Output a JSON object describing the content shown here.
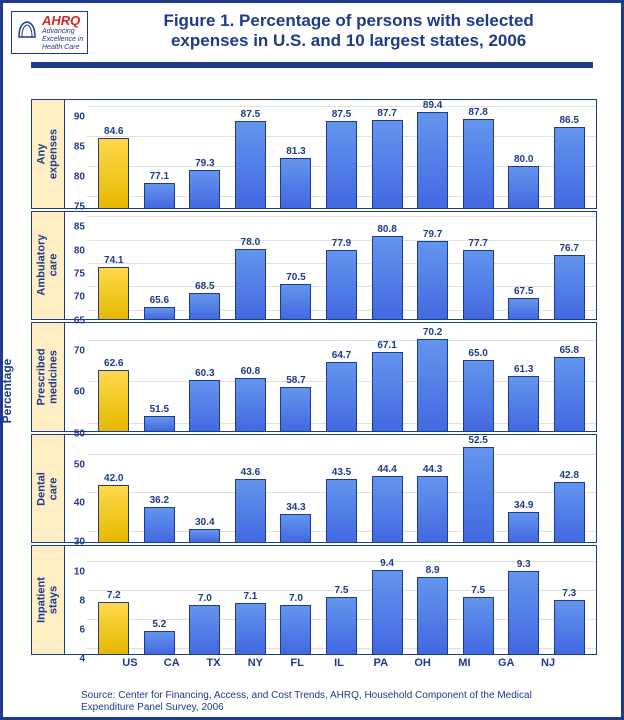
{
  "logo": {
    "brand": "AHRQ",
    "sub1": "Advancing",
    "sub2": "Excellence in",
    "sub3": "Health Care"
  },
  "title_line1": "Figure 1. Percentage of persons with selected",
  "title_line2": "expenses in U.S. and 10 largest states, 2006",
  "ylabel_global": "Percentage",
  "categories": [
    "US",
    "CA",
    "TX",
    "NY",
    "FL",
    "IL",
    "PA",
    "OH",
    "MI",
    "GA",
    "NJ"
  ],
  "panels": [
    {
      "label": "Any\nexpenses",
      "ymin": 73,
      "ymax": 91,
      "yticks": [
        75,
        80,
        85,
        90
      ],
      "values": [
        84.6,
        77.1,
        79.3,
        87.5,
        81.3,
        87.5,
        87.7,
        89.4,
        87.8,
        80.0,
        86.5
      ]
    },
    {
      "label": "Ambulatory\ncare",
      "ymin": 63,
      "ymax": 86,
      "yticks": [
        65,
        70,
        75,
        80,
        85
      ],
      "values": [
        74.1,
        65.6,
        68.5,
        78.0,
        70.5,
        77.9,
        80.8,
        79.7,
        77.7,
        67.5,
        76.7
      ]
    },
    {
      "label": "Prescribed\nmedicines",
      "ymin": 48,
      "ymax": 74,
      "yticks": [
        50,
        60,
        70
      ],
      "values": [
        62.6,
        51.5,
        60.3,
        60.8,
        58.7,
        64.7,
        67.1,
        70.2,
        65.0,
        61.3,
        65.8
      ]
    },
    {
      "label": "Dental\ncare",
      "ymin": 27,
      "ymax": 55,
      "yticks": [
        30,
        40,
        50
      ],
      "values": [
        42.0,
        36.2,
        30.4,
        43.6,
        34.3,
        43.5,
        44.4,
        44.3,
        52.5,
        34.9,
        42.8
      ]
    },
    {
      "label": "Inpatient\nstays",
      "ymin": 3.6,
      "ymax": 11,
      "yticks": [
        4,
        6,
        8,
        10
      ],
      "values": [
        7.2,
        5.2,
        7.0,
        7.1,
        7.0,
        7.5,
        9.4,
        8.9,
        7.5,
        9.3,
        7.3
      ]
    }
  ],
  "colors": {
    "us_bar": "#ffcc33",
    "state_bar": "#4169e1",
    "border": "#1e3a8a",
    "label_bg": "#ffedc4",
    "grid": "#e0e0e0"
  },
  "footer_line1": "Source: Center for Financing, Access, and Cost Trends, AHRQ, Household Component of the Medical",
  "footer_line2": "Expenditure Panel Survey, 2006"
}
